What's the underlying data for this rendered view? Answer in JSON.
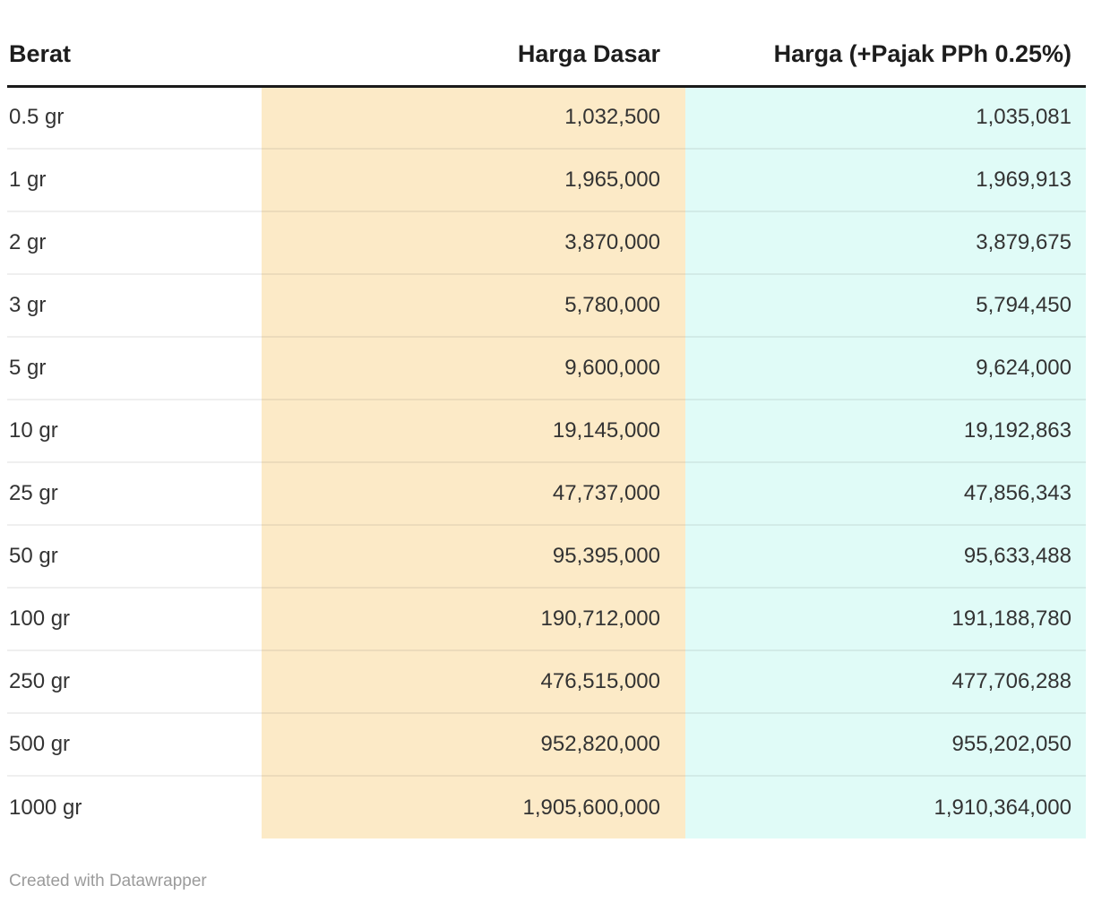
{
  "chart_data": {
    "type": "table",
    "columns": [
      "Berat",
      "Harga Dasar",
      "Harga (+Pajak PPh 0.25%)"
    ],
    "rows": [
      [
        "0.5 gr",
        "1,032,500",
        "1,035,081"
      ],
      [
        "1 gr",
        "1,965,000",
        "1,969,913"
      ],
      [
        "2 gr",
        "3,870,000",
        "3,879,675"
      ],
      [
        "3 gr",
        "5,780,000",
        "5,794,450"
      ],
      [
        "5 gr",
        "9,600,000",
        "9,624,000"
      ],
      [
        "10 gr",
        "19,145,000",
        "19,192,863"
      ],
      [
        "25 gr",
        "47,737,000",
        "47,856,343"
      ],
      [
        "50 gr",
        "95,395,000",
        "95,633,488"
      ],
      [
        "100 gr",
        "190,712,000",
        "191,188,780"
      ],
      [
        "250 gr",
        "476,515,000",
        "477,706,288"
      ],
      [
        "500 gr",
        "952,820,000",
        "955,202,050"
      ],
      [
        "1000 gr",
        "1,905,600,000",
        "1,910,364,000"
      ]
    ],
    "layout_hints": {
      "grid": "horizontal row dividers only",
      "column_alignment": [
        "left",
        "right",
        "right"
      ]
    }
  },
  "colors": {
    "harga_dasar_column_bg": "#fceac7",
    "harga_pajak_column_bg": "#e0fbf7",
    "header_rule": "#1a1a1a",
    "body_text": "#333333",
    "footer_text": "#9b9b9b"
  },
  "footer": {
    "credit": "Created with Datawrapper"
  }
}
